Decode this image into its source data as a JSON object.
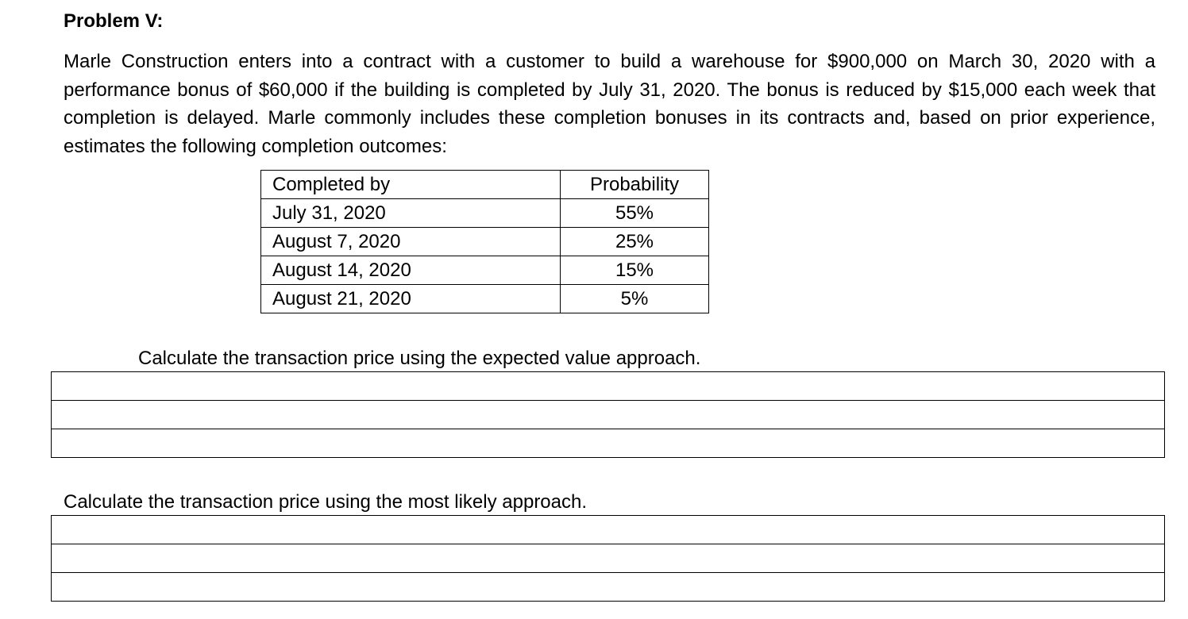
{
  "problem": {
    "title": "Problem V:",
    "text": "Marle Construction enters into a contract with a customer to build a warehouse for $900,000 on March 30, 2020 with a performance bonus of $60,000 if the building is completed by July 31, 2020. The bonus is reduced by $15,000 each week that completion is delayed. Marle commonly includes these completion bonuses in its contracts and, based on prior experience, estimates the following completion outcomes:"
  },
  "outcomes_table": {
    "headers": [
      "Completed by",
      "Probability"
    ],
    "rows": [
      {
        "date": "July 31, 2020",
        "probability": "55%"
      },
      {
        "date": "August 7, 2020",
        "probability": "25%"
      },
      {
        "date": "August 14, 2020",
        "probability": "15%"
      },
      {
        "date": "August 21, 2020",
        "probability": "5%"
      }
    ]
  },
  "questions": [
    {
      "prompt": "Calculate the transaction price using the expected value approach.",
      "answer_lines": [
        "",
        "",
        ""
      ]
    },
    {
      "prompt": "Calculate the transaction price using the most likely approach.",
      "answer_lines": [
        "",
        "",
        ""
      ]
    }
  ]
}
